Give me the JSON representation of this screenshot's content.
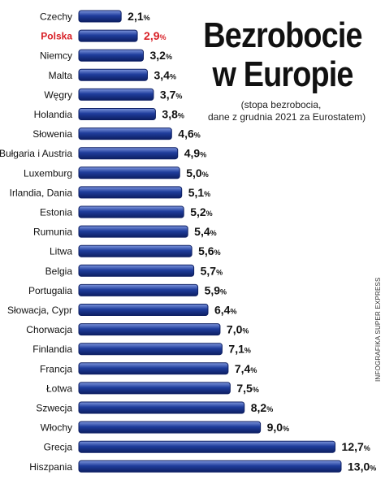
{
  "title_lines": [
    "Bezrobocie",
    "w Europie"
  ],
  "subtitle_lines": [
    "(stopa bezrobocia,",
    "dane z grudnia 2021 za Eurostatem)"
  ],
  "credit": "INFOGRAFIKA SUPER EXPRESS",
  "colors": {
    "bar_fill": "#1f3d9c",
    "bar_highlight": "#7e96dd",
    "bar_border": "#0d1f63",
    "label_text": "#111111",
    "highlight_text": "#d81f26"
  },
  "chart_data": {
    "type": "bar",
    "orientation": "horizontal",
    "title": "Bezrobocie w Europie",
    "subtitle": "(stopa bezrobocia, dane z grudnia 2021 za Eurostatem)",
    "unit": "%",
    "xlim": [
      0,
      13.0
    ],
    "grid": false,
    "categories": [
      "Czechy",
      "Polska",
      "Niemcy",
      "Malta",
      "Węgry",
      "Holandia",
      "Słowenia",
      "Bułgaria i Austria",
      "Luxemburg",
      "Irlandia, Dania",
      "Estonia",
      "Rumunia",
      "Litwa",
      "Belgia",
      "Portugalia",
      "Słowacja, Cypr",
      "Chorwacja",
      "Finlandia",
      "Francja",
      "Łotwa",
      "Szwecja",
      "Włochy",
      "Grecja",
      "Hiszpania"
    ],
    "values": [
      2.1,
      2.9,
      3.2,
      3.4,
      3.7,
      3.8,
      4.6,
      4.9,
      5.0,
      5.1,
      5.2,
      5.4,
      5.6,
      5.7,
      5.9,
      6.4,
      7.0,
      7.1,
      7.4,
      7.5,
      8.2,
      9.0,
      12.7,
      13.0
    ],
    "value_labels": [
      "2,1",
      "2,9",
      "3,2",
      "3,4",
      "3,7",
      "3,8",
      "4,6",
      "4,9",
      "5,0",
      "5,1",
      "5,2",
      "5,4",
      "5,6",
      "5,7",
      "5,9",
      "6,4",
      "7,0",
      "7,1",
      "7,4",
      "7,5",
      "8,2",
      "9,0",
      "12,7",
      "13,0"
    ],
    "highlighted": [
      "Polska"
    ]
  }
}
